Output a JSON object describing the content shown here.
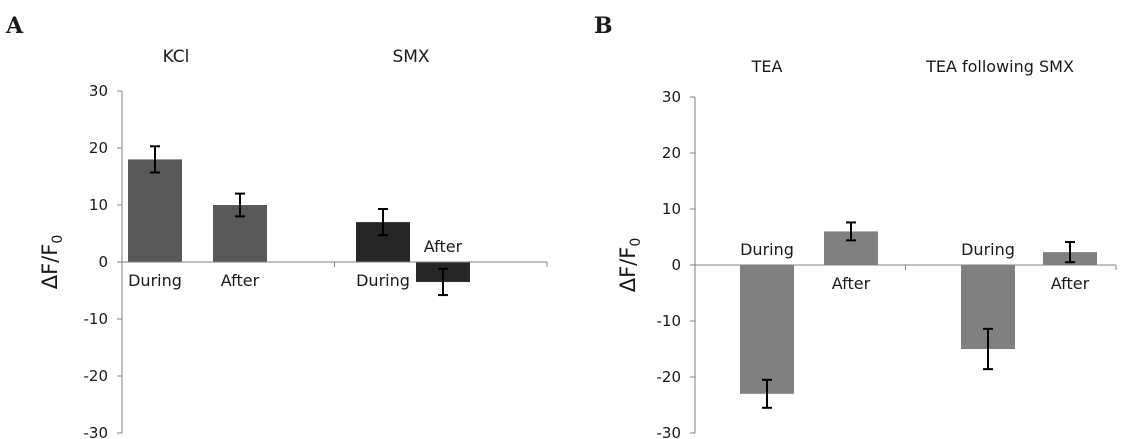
{
  "chart_data": [
    {
      "panel": "A",
      "type": "bar",
      "ylabel": "ΔF/F",
      "ylabel_subscript": "0",
      "ylim": [
        -30,
        30
      ],
      "yticks": [
        -30,
        -20,
        -10,
        0,
        10,
        20,
        30
      ],
      "grid": false,
      "groups": [
        {
          "title": "KCl",
          "color": "#595959",
          "bars": [
            {
              "label": "During",
              "value": 18,
              "error": 2.3
            },
            {
              "label": "After",
              "value": 10,
              "error": 2.0
            }
          ]
        },
        {
          "title": "SMX",
          "color": "#262626",
          "bars": [
            {
              "label": "During",
              "value": 7,
              "error": 2.3
            },
            {
              "label": "After",
              "value": -3.5,
              "error": 2.3
            }
          ]
        }
      ]
    },
    {
      "panel": "B",
      "type": "bar",
      "ylabel": "ΔF/F",
      "ylabel_subscript": "0",
      "ylim": [
        -30,
        30
      ],
      "yticks": [
        -30,
        -20,
        -10,
        0,
        10,
        20,
        30
      ],
      "grid": false,
      "groups": [
        {
          "title": "TEA",
          "color": "#808080",
          "bars": [
            {
              "label": "During",
              "value": -23,
              "error": 2.5
            },
            {
              "label": "After",
              "value": 6,
              "error": 1.6
            }
          ]
        },
        {
          "title": "TEA following SMX",
          "color": "#808080",
          "bars": [
            {
              "label": "During",
              "value": -15,
              "error": 3.6
            },
            {
              "label": "After",
              "value": 2.3,
              "error": 1.8
            }
          ]
        }
      ]
    }
  ]
}
